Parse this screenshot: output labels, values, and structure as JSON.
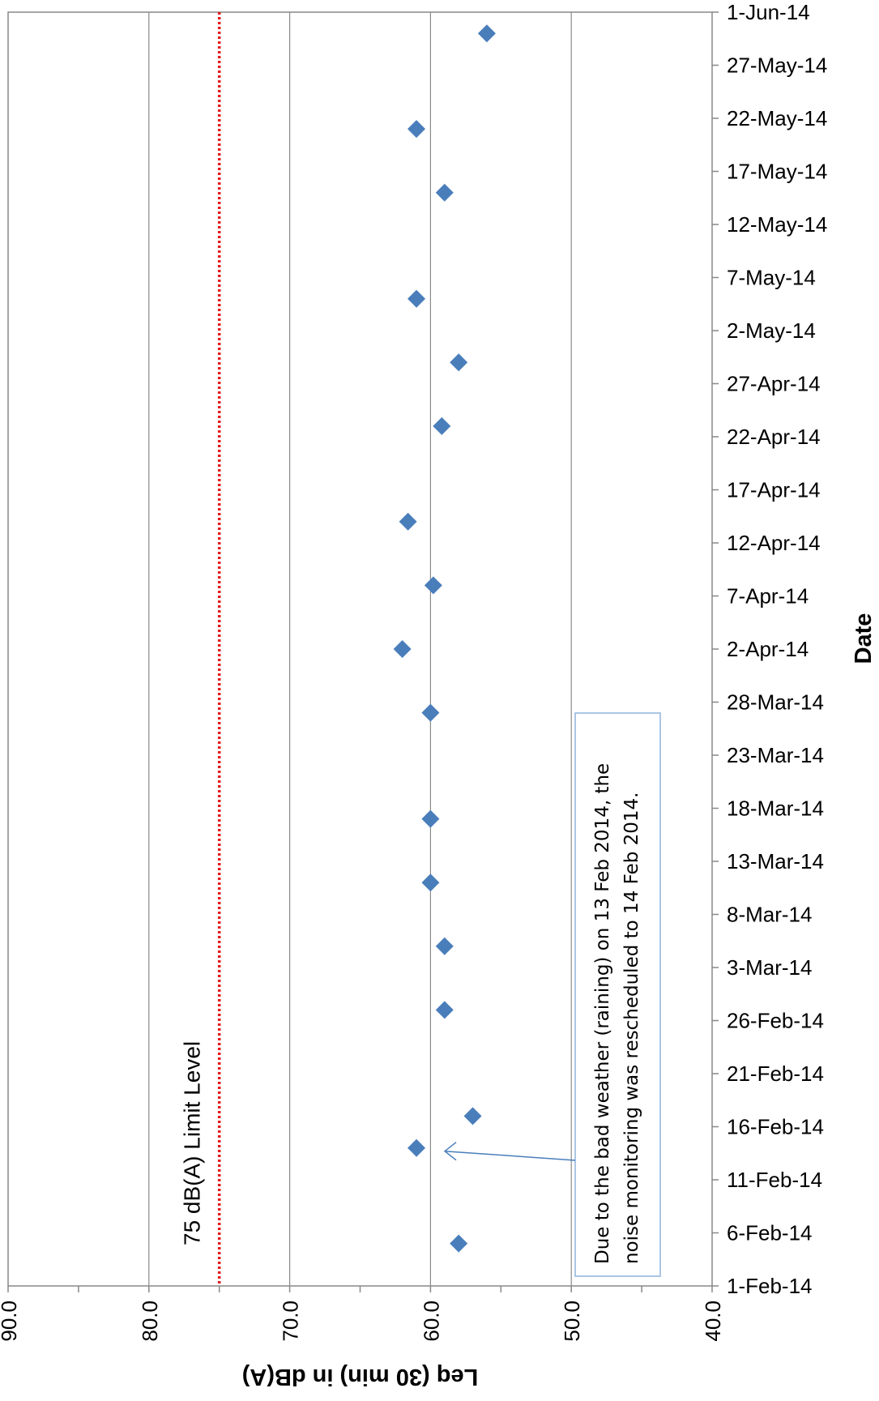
{
  "chart_data": {
    "type": "scatter",
    "orientation": "rotated-90",
    "x_axis": {
      "title": "Date",
      "range": [
        "2014-02-01",
        "2014-06-01"
      ],
      "tick_labels": [
        "1-Feb-14",
        "6-Feb-14",
        "11-Feb-14",
        "16-Feb-14",
        "21-Feb-14",
        "26-Feb-14",
        "3-Mar-14",
        "8-Mar-14",
        "13-Mar-14",
        "18-Mar-14",
        "23-Mar-14",
        "28-Mar-14",
        "2-Apr-14",
        "7-Apr-14",
        "12-Apr-14",
        "17-Apr-14",
        "22-Apr-14",
        "27-Apr-14",
        "2-May-14",
        "7-May-14",
        "12-May-14",
        "17-May-14",
        "22-May-14",
        "27-May-14",
        "1-Jun-14"
      ]
    },
    "y_axis": {
      "title": "Leq (30 min) in dB(A)",
      "range": [
        40,
        90
      ],
      "tick_labels": [
        "40.0",
        "50.0",
        "60.0",
        "70.0",
        "80.0",
        "90.0"
      ]
    },
    "grid": "major y gridlines",
    "points": [
      {
        "x": "2014-02-05",
        "y": 58.0
      },
      {
        "x": "2014-02-14",
        "y": 61.0
      },
      {
        "x": "2014-02-17",
        "y": 57.0
      },
      {
        "x": "2014-02-27",
        "y": 59.0
      },
      {
        "x": "2014-03-05",
        "y": 59.0
      },
      {
        "x": "2014-03-11",
        "y": 60.0
      },
      {
        "x": "2014-03-17",
        "y": 60.0
      },
      {
        "x": "2014-03-27",
        "y": 60.0
      },
      {
        "x": "2014-04-02",
        "y": 62.0
      },
      {
        "x": "2014-04-08",
        "y": 59.8
      },
      {
        "x": "2014-04-14",
        "y": 61.6
      },
      {
        "x": "2014-04-23",
        "y": 59.2
      },
      {
        "x": "2014-04-29",
        "y": 58.0
      },
      {
        "x": "2014-05-05",
        "y": 61.0
      },
      {
        "x": "2014-05-15",
        "y": 59.0
      },
      {
        "x": "2014-05-21",
        "y": 61.0
      },
      {
        "x": "2014-05-30",
        "y": 56.0
      }
    ],
    "marker_color": "#4a7ebb",
    "limit_line": {
      "y": 75,
      "label": "75 dB(A) Limit Level",
      "color": "#e41a1c",
      "style": "dotted"
    },
    "annotation": {
      "lines": [
        "Due to the bad weather (raining) on 13 Feb 2014, the",
        "noise monitoring was rescheduled to 14 Feb 2014."
      ],
      "points_to": {
        "x": "2014-02-14",
        "y": 61.0
      },
      "color": "#4a7ebb"
    }
  }
}
